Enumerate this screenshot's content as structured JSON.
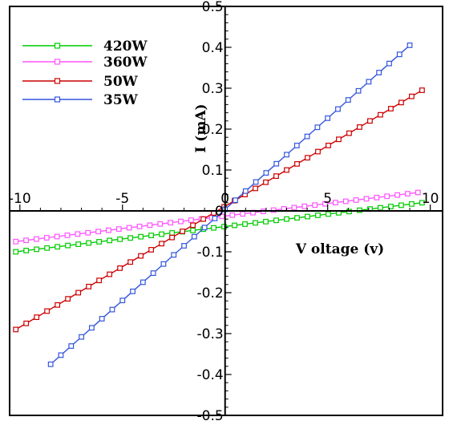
{
  "chart_data": {
    "type": "line",
    "xlabel": "V oltage (v)",
    "ylabel": "I (mA)",
    "xlim": [
      -10.5,
      10.6
    ],
    "ylim": [
      -0.5,
      0.5
    ],
    "x_ticks": [
      -10,
      -5,
      0,
      5,
      10
    ],
    "x_tick_labels": [
      "-10",
      "-5",
      "0",
      "5",
      "10"
    ],
    "y_ticks": [
      -0.5,
      -0.4,
      -0.3,
      -0.2,
      -0.1,
      0,
      0.1,
      0.2,
      0.3,
      0.4,
      0.5
    ],
    "y_tick_labels": [
      "-0.5",
      "-0.4",
      "-0.3",
      "-0.2",
      "-0.1",
      "0",
      "0.1",
      "0.2",
      "0.3",
      "0.4",
      "0.5"
    ],
    "grid": false,
    "legend_position": "top-left",
    "series": [
      {
        "name": "420W",
        "color": "#00cc00",
        "marker": "square",
        "start": {
          "x": -10.2,
          "y": -0.1
        },
        "end": {
          "x": 9.6,
          "y": 0.02
        },
        "count": 40
      },
      {
        "name": "360W",
        "color": "#ff55ff",
        "marker": "square",
        "start": {
          "x": -10.2,
          "y": -0.075
        },
        "end": {
          "x": 9.4,
          "y": 0.045
        },
        "count": 40
      },
      {
        "name": "50W",
        "color": "#cc0000",
        "marker": "square",
        "start": {
          "x": -10.2,
          "y": -0.29
        },
        "end": {
          "x": 9.6,
          "y": 0.295
        },
        "count": 40
      },
      {
        "name": "35W",
        "color": "#3355dd",
        "marker": "square",
        "start": {
          "x": -8.5,
          "y": -0.375
        },
        "end": {
          "x": 9.0,
          "y": 0.405
        },
        "count": 36
      }
    ]
  }
}
